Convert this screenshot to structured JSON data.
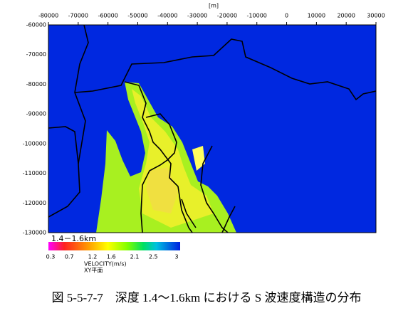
{
  "map": {
    "x_axis": {
      "unit": "[m]",
      "ticks": [
        -80000,
        -70000,
        -60000,
        -50000,
        -40000,
        -30000,
        -20000,
        -10000,
        0,
        10000,
        20000,
        30000
      ]
    },
    "y_axis": {
      "ticks": [
        -60000,
        -70000,
        -80000,
        -90000,
        -100000,
        -110000,
        -120000,
        -130000
      ]
    }
  },
  "legend": {
    "depth_label": "1.4－1.6km",
    "tick_labels": [
      0.3,
      0.7,
      1.2,
      1.6,
      2.1,
      2.5,
      3
    ],
    "title": "VELOCITY(m/s)",
    "plane": "XY平面"
  },
  "caption": "図 5-5-7-7　深度 1.4～1.6km における S 波速度構造の分布"
}
